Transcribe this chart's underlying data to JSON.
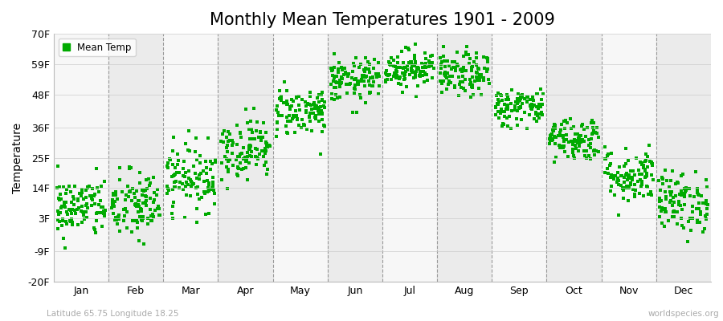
{
  "title": "Monthly Mean Temperatures 1901 - 2009",
  "ylabel": "Temperature",
  "xlabel_labels": [
    "Jan",
    "Feb",
    "Mar",
    "Apr",
    "May",
    "Jun",
    "Jul",
    "Aug",
    "Sep",
    "Oct",
    "Nov",
    "Dec"
  ],
  "subtitle": "Latitude 65.75 Longitude 18.25",
  "watermark": "worldspecies.org",
  "legend_label": "Mean Temp",
  "dot_color": "#00AA00",
  "bg_color": "#ffffff",
  "plot_bg_color": "#ffffff",
  "band_color_odd": "#ebebeb",
  "band_color_even": "#f7f7f7",
  "title_fontsize": 15,
  "label_fontsize": 10,
  "tick_fontsize": 9,
  "ylim": [
    -20,
    70
  ],
  "yticks": [
    -20,
    -9,
    3,
    14,
    25,
    36,
    48,
    59,
    70
  ],
  "ytick_labels": [
    "-20F",
    "-9F",
    "3F",
    "14F",
    "25F",
    "36F",
    "48F",
    "59F",
    "70F"
  ],
  "num_years": 109,
  "monthly_means": [
    7.0,
    7.5,
    18.0,
    28.5,
    42.0,
    53.0,
    57.5,
    55.0,
    43.5,
    32.0,
    18.5,
    9.0
  ],
  "monthly_stds": [
    5.5,
    6.5,
    6.0,
    5.5,
    4.5,
    4.0,
    3.5,
    4.0,
    3.5,
    4.0,
    5.0,
    5.5
  ],
  "seed": 42
}
